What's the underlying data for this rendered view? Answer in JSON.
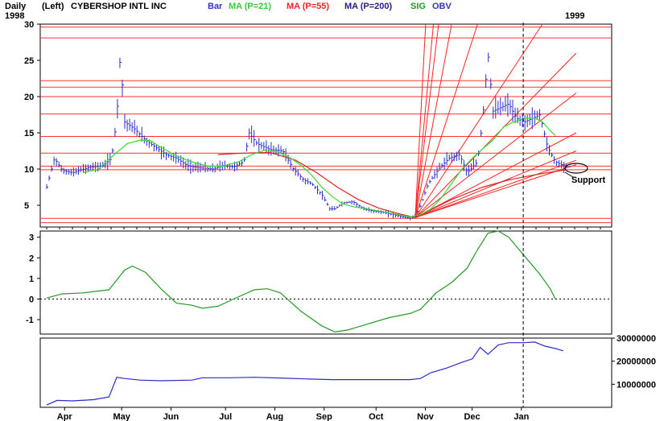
{
  "header": {
    "period": "Daily",
    "scale_side": "(Left)",
    "symbol": "CYBERSHOP INTL INC",
    "year_start": "1998",
    "year_end": "1999",
    "legend": [
      {
        "label": "Bar",
        "color": "#3333cc"
      },
      {
        "label": "MA (P=21)",
        "color": "#33cc33"
      },
      {
        "label": "MA (P=55)",
        "color": "#ff2222"
      },
      {
        "label": "MA (P=200)",
        "color": "#222288"
      },
      {
        "label": "SIG",
        "color": "#229922"
      },
      {
        "label": "OBV",
        "color": "#3333cc"
      }
    ]
  },
  "annotations": {
    "support": "Support"
  },
  "chart_data": [
    {
      "type": "bar",
      "panel": "price",
      "ylim": [
        2,
        30
      ],
      "yticks": [
        5,
        10,
        15,
        20,
        25,
        30
      ],
      "months": [
        "Apr",
        "May",
        "Jun",
        "Jul",
        "Aug",
        "Sep",
        "Oct",
        "Nov",
        "Dec",
        "Jan"
      ],
      "month_x": [
        0.5,
        1.6,
        2.55,
        3.6,
        4.55,
        5.5,
        6.5,
        7.45,
        8.35,
        9.3
      ],
      "date_range": [
        "1998-03-20",
        "1999-01-10"
      ],
      "price_points": [
        [
          0.0,
          7.5
        ],
        [
          0.15,
          11.5
        ],
        [
          0.3,
          9.8
        ],
        [
          0.5,
          9.5
        ],
        [
          0.8,
          10.2
        ],
        [
          1.1,
          10.5
        ],
        [
          1.25,
          11.5
        ],
        [
          1.35,
          17
        ],
        [
          1.42,
          26
        ],
        [
          1.5,
          16.5
        ],
        [
          1.7,
          15.5
        ],
        [
          1.9,
          14
        ],
        [
          2.1,
          13
        ],
        [
          2.3,
          12
        ],
        [
          2.5,
          11.5
        ],
        [
          2.7,
          10.5
        ],
        [
          2.9,
          10.2
        ],
        [
          3.2,
          10
        ],
        [
          3.4,
          10.5
        ],
        [
          3.6,
          10.3
        ],
        [
          3.8,
          11
        ],
        [
          3.9,
          15
        ],
        [
          4.05,
          13.5
        ],
        [
          4.3,
          12.7
        ],
        [
          4.55,
          12.5
        ],
        [
          4.75,
          10
        ],
        [
          4.95,
          8.5
        ],
        [
          5.1,
          8
        ],
        [
          5.3,
          6.5
        ],
        [
          5.45,
          4.5
        ],
        [
          5.55,
          4.5
        ],
        [
          5.7,
          5.3
        ],
        [
          5.9,
          5.5
        ],
        [
          6.1,
          4.5
        ],
        [
          6.3,
          4.2
        ],
        [
          6.5,
          4
        ],
        [
          6.8,
          3.5
        ],
        [
          7.0,
          3.2
        ],
        [
          7.1,
          3.5
        ],
        [
          7.2,
          5
        ],
        [
          7.35,
          8
        ],
        [
          7.55,
          10
        ],
        [
          7.75,
          11.5
        ],
        [
          7.95,
          12
        ],
        [
          8.1,
          9.5
        ],
        [
          8.3,
          11
        ],
        [
          8.4,
          17
        ],
        [
          8.5,
          26
        ],
        [
          8.6,
          18
        ],
        [
          8.75,
          18.5
        ],
        [
          8.9,
          19
        ],
        [
          9.05,
          17
        ],
        [
          9.2,
          16.5
        ],
        [
          9.35,
          17
        ],
        [
          9.5,
          17.5
        ],
        [
          9.65,
          13
        ],
        [
          9.8,
          11
        ],
        [
          9.95,
          10.5
        ],
        [
          10.05,
          10.3
        ]
      ],
      "retracement_levels": [
        2.6,
        3.2,
        9.9,
        10.4,
        12.2,
        14.5,
        17.6,
        20.0,
        21.3,
        22.2,
        28.1,
        29.6
      ],
      "ma21": [
        [
          0.7,
          9.5
        ],
        [
          1.0,
          10
        ],
        [
          1.3,
          12
        ],
        [
          1.55,
          13.5
        ],
        [
          1.8,
          14
        ],
        [
          2.0,
          13.9
        ],
        [
          2.2,
          13
        ],
        [
          2.5,
          11.8
        ],
        [
          2.8,
          11
        ],
        [
          3.1,
          10.4
        ],
        [
          3.4,
          10.4
        ],
        [
          3.7,
          11
        ],
        [
          3.95,
          12
        ],
        [
          4.2,
          12.6
        ],
        [
          4.45,
          12.4
        ],
        [
          4.7,
          11.5
        ],
        [
          4.9,
          10.5
        ],
        [
          5.1,
          9.2
        ],
        [
          5.3,
          7.5
        ],
        [
          5.5,
          6.2
        ],
        [
          5.7,
          5.2
        ],
        [
          5.9,
          4.8
        ],
        [
          6.1,
          4.6
        ],
        [
          6.4,
          4.2
        ],
        [
          6.7,
          3.8
        ],
        [
          7.0,
          3.4
        ],
        [
          7.2,
          3.7
        ],
        [
          7.4,
          4.5
        ],
        [
          7.6,
          6
        ],
        [
          7.8,
          8
        ],
        [
          8.0,
          10
        ],
        [
          8.2,
          11.5
        ],
        [
          8.4,
          12.8
        ],
        [
          8.6,
          14
        ],
        [
          8.8,
          15.8
        ],
        [
          9.0,
          16.5
        ],
        [
          9.2,
          17
        ],
        [
          9.4,
          17
        ],
        [
          9.55,
          16.5
        ],
        [
          9.7,
          15.3
        ],
        [
          9.8,
          14.6
        ]
      ],
      "ma55": [
        [
          3.3,
          12
        ],
        [
          3.8,
          12.2
        ],
        [
          4.3,
          12.3
        ],
        [
          4.8,
          11.2
        ],
        [
          5.2,
          9.5
        ],
        [
          5.6,
          7.5
        ],
        [
          6.0,
          5.8
        ],
        [
          6.4,
          4.6
        ],
        [
          6.8,
          3.8
        ],
        [
          7.1,
          3.3
        ]
      ],
      "ma200": [
        [
          7.1,
          3.3
        ],
        [
          7.8,
          5.8
        ],
        [
          8.4,
          7.5
        ],
        [
          8.9,
          8.5
        ],
        [
          9.4,
          9.2
        ],
        [
          10.0,
          9.9
        ]
      ],
      "gann_origin": [
        7.1,
        3.3
      ],
      "gann_targets": [
        [
          7.3,
          30
        ],
        [
          7.45,
          30
        ],
        [
          7.55,
          30
        ],
        [
          7.8,
          30
        ],
        [
          8.3,
          30
        ],
        [
          9.55,
          30
        ],
        [
          10.2,
          26
        ],
        [
          10.2,
          20.5
        ],
        [
          10.2,
          15
        ],
        [
          10.2,
          12.5
        ],
        [
          10.2,
          11.2
        ],
        [
          10.2,
          10.6
        ]
      ]
    },
    {
      "type": "line",
      "panel": "oscillator",
      "series": [
        {
          "name": "SIG",
          "color": "#229922"
        }
      ],
      "ylim": [
        -1.7,
        3.3
      ],
      "yticks": [
        3,
        2,
        1,
        0,
        -1
      ],
      "zero_line": 0,
      "points": [
        [
          0.0,
          0.05
        ],
        [
          0.3,
          0.25
        ],
        [
          0.7,
          0.3
        ],
        [
          1.2,
          0.45
        ],
        [
          1.5,
          1.4
        ],
        [
          1.65,
          1.6
        ],
        [
          1.9,
          1.3
        ],
        [
          2.2,
          0.5
        ],
        [
          2.5,
          -0.2
        ],
        [
          2.8,
          -0.3
        ],
        [
          3.0,
          -0.45
        ],
        [
          3.3,
          -0.35
        ],
        [
          3.6,
          0.0
        ],
        [
          4.0,
          0.45
        ],
        [
          4.25,
          0.5
        ],
        [
          4.5,
          0.3
        ],
        [
          4.9,
          -0.6
        ],
        [
          5.3,
          -1.3
        ],
        [
          5.55,
          -1.6
        ],
        [
          5.8,
          -1.5
        ],
        [
          6.2,
          -1.2
        ],
        [
          6.6,
          -0.9
        ],
        [
          7.0,
          -0.7
        ],
        [
          7.2,
          -0.5
        ],
        [
          7.5,
          0.3
        ],
        [
          7.8,
          0.8
        ],
        [
          8.1,
          1.5
        ],
        [
          8.3,
          2.4
        ],
        [
          8.5,
          3.2
        ],
        [
          8.7,
          3.3
        ],
        [
          8.9,
          3.0
        ],
        [
          9.2,
          2.1
        ],
        [
          9.5,
          1.2
        ],
        [
          9.7,
          0.5
        ],
        [
          9.8,
          0.0
        ]
      ]
    },
    {
      "type": "line",
      "panel": "volume",
      "series": [
        {
          "name": "OBV",
          "color": "#3333cc"
        }
      ],
      "ylim": [
        0,
        30000000
      ],
      "yticks": [
        10000000,
        20000000,
        30000000
      ],
      "ytick_labels": [
        "10000000",
        "20000000",
        "30000000"
      ],
      "points": [
        [
          0.0,
          1000000
        ],
        [
          0.2,
          3000000
        ],
        [
          0.5,
          2800000
        ],
        [
          0.9,
          3300000
        ],
        [
          1.2,
          4500000
        ],
        [
          1.35,
          13000000
        ],
        [
          1.5,
          12500000
        ],
        [
          1.8,
          11800000
        ],
        [
          2.2,
          11500000
        ],
        [
          2.8,
          11800000
        ],
        [
          3.0,
          12800000
        ],
        [
          3.5,
          12800000
        ],
        [
          4.0,
          13000000
        ],
        [
          4.5,
          12700000
        ],
        [
          5.0,
          12300000
        ],
        [
          5.5,
          12000000
        ],
        [
          6.0,
          12000000
        ],
        [
          6.5,
          12000000
        ],
        [
          7.0,
          12000000
        ],
        [
          7.2,
          12500000
        ],
        [
          7.4,
          15000000
        ],
        [
          7.7,
          17000000
        ],
        [
          8.0,
          19500000
        ],
        [
          8.2,
          21000000
        ],
        [
          8.35,
          26000000
        ],
        [
          8.5,
          23000000
        ],
        [
          8.7,
          27000000
        ],
        [
          8.9,
          28000000
        ],
        [
          9.2,
          28000000
        ],
        [
          9.4,
          28300000
        ],
        [
          9.6,
          26500000
        ],
        [
          9.8,
          25500000
        ],
        [
          9.95,
          24500000
        ]
      ]
    }
  ]
}
